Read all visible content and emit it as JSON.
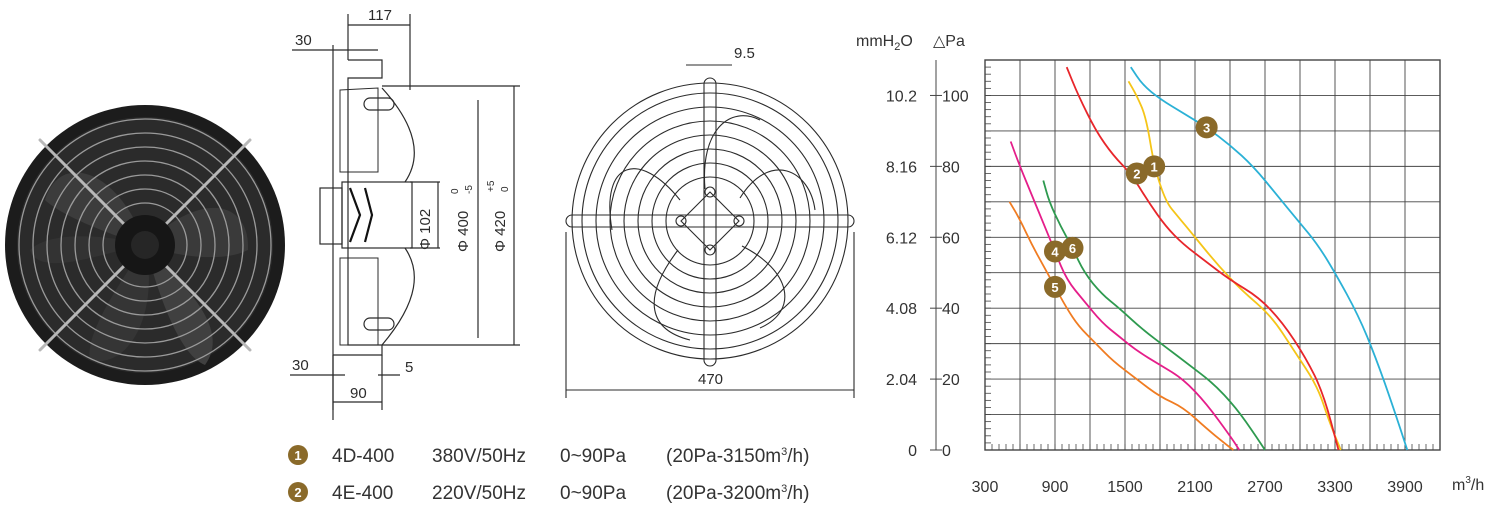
{
  "side_view": {
    "dim_top": "117",
    "dim_left_top": "30",
    "dim_left_bottom": "30",
    "dim_bottom_width": "90",
    "dim_bottom_right": "5",
    "dim_hub": "Φ 102",
    "dim_ring": "Φ 400",
    "dim_ring_tol_upper": "0",
    "dim_ring_tol_lower": "-5",
    "dim_outer": "Φ 420",
    "dim_outer_tol_upper": "+5",
    "dim_outer_tol_lower": "0"
  },
  "front_view": {
    "dim_bar": "9.5",
    "dim_width": "470"
  },
  "legend": [
    {
      "marker": "1",
      "model": "4D-400",
      "supply": "380V/50Hz",
      "pressure": "0~90Pa",
      "rating_prefix": "(20Pa-3150m",
      "rating_sup": "3",
      "rating_suffix": "/h)"
    },
    {
      "marker": "2",
      "model": "4E-400",
      "supply": "220V/50Hz",
      "pressure": "0~90Pa",
      "rating_prefix": "(20Pa-3200m",
      "rating_sup": "3",
      "rating_suffix": "/h)"
    }
  ],
  "chart_data": {
    "type": "line",
    "y_left_label": "mmH2O",
    "y_left_label_main": "mmH",
    "y_left_label_sub": "2",
    "y_left_label_end": "O",
    "y_right_label": "△Pa",
    "x_unit_main": "m",
    "x_unit_sup": "3",
    "x_unit_end": "/h",
    "x_ticks": [
      "300",
      "900",
      "1500",
      "2100",
      "2700",
      "3300",
      "3900"
    ],
    "y_ticks_pa": [
      "0",
      "20",
      "40",
      "60",
      "80",
      "100"
    ],
    "y_ticks_mmh2o": [
      "0",
      "2.04",
      "4.08",
      "6.12",
      "8.16",
      "10.2"
    ],
    "xlim": [
      300,
      4200
    ],
    "ylim": [
      0,
      110
    ],
    "grid": true,
    "series": [
      {
        "marker": "1",
        "color": "#f5c518",
        "x": [
          1530,
          1600,
          1680,
          1750,
          1850,
          1950,
          2100,
          2300,
          2500,
          2750,
          2950,
          3150,
          3250,
          3350
        ],
        "y": [
          104,
          100,
          94,
          80,
          70,
          66,
          60,
          52,
          45,
          38,
          28,
          18,
          8,
          0
        ]
      },
      {
        "marker": "2",
        "color": "#e8262b",
        "x": [
          1000,
          1100,
          1250,
          1400,
          1550,
          1700,
          1850,
          2000,
          2200,
          2400,
          2650,
          2850,
          3050,
          3200,
          3330
        ],
        "y": [
          108,
          100,
          90,
          83,
          78,
          70,
          63,
          58,
          53,
          48,
          43,
          36,
          26,
          16,
          0
        ]
      },
      {
        "marker": "3",
        "color": "#2bb1d6",
        "x": [
          1550,
          1650,
          1800,
          2000,
          2200,
          2400,
          2600,
          2800,
          3000,
          3150,
          3300,
          3500,
          3650,
          3800,
          3920
        ],
        "y": [
          108,
          103,
          99,
          95,
          91,
          86,
          80,
          72,
          64,
          58,
          50,
          38,
          26,
          12,
          0
        ]
      },
      {
        "marker": "4",
        "color": "#e51e8a",
        "x": [
          520,
          600,
          700,
          800,
          900,
          1000,
          1150,
          1300,
          1450,
          1600,
          1800,
          2000,
          2200,
          2400,
          2480
        ],
        "y": [
          87,
          80,
          72,
          64,
          56,
          48,
          42,
          36,
          32,
          28,
          24,
          20,
          13,
          4,
          0
        ]
      },
      {
        "marker": "5",
        "color": "#f07c22",
        "x": [
          510,
          600,
          700,
          800,
          900,
          1000,
          1100,
          1250,
          1400,
          1600,
          1800,
          2000,
          2200,
          2350,
          2430
        ],
        "y": [
          70,
          65,
          58,
          52,
          46,
          40,
          35,
          30,
          25,
          20,
          15,
          12,
          6,
          2,
          0
        ]
      },
      {
        "marker": "6",
        "color": "#2e9a4f",
        "x": [
          800,
          850,
          950,
          1050,
          1150,
          1300,
          1450,
          1650,
          1850,
          2050,
          2250,
          2450,
          2620,
          2700
        ],
        "y": [
          76,
          70,
          63,
          57,
          50,
          44,
          40,
          34,
          29,
          24,
          19,
          12,
          4,
          0
        ]
      }
    ]
  },
  "colors": {
    "marker_bg": "#8a6a2a",
    "grid": "#444444"
  }
}
